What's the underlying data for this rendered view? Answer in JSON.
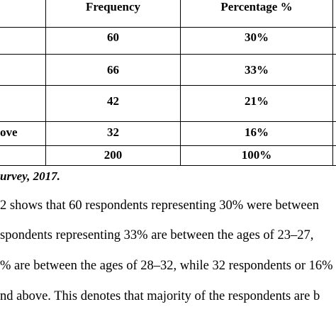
{
  "table": {
    "headers": [
      "Frequency",
      "Percentage %"
    ],
    "rows": [
      {
        "label": "",
        "frequency": "60",
        "percentage": "30%"
      },
      {
        "label": "",
        "frequency": "66",
        "percentage": "33%"
      },
      {
        "label": "",
        "frequency": "42",
        "percentage": "21%"
      },
      {
        "label": "ove",
        "frequency": "32",
        "percentage": "16%"
      },
      {
        "label": "",
        "frequency": "200",
        "percentage": "100%"
      }
    ]
  },
  "source": "urvey, 2017.",
  "paragraph": {
    "lines": [
      " 2 shows that 60 respondents representing 30% were between",
      "spondents representing 33% are between the ages of 23–27,",
      "% are between the ages of 28–32, while 32 respondents or 16%",
      "nd above. This denotes that majority of the respondents are b"
    ]
  }
}
